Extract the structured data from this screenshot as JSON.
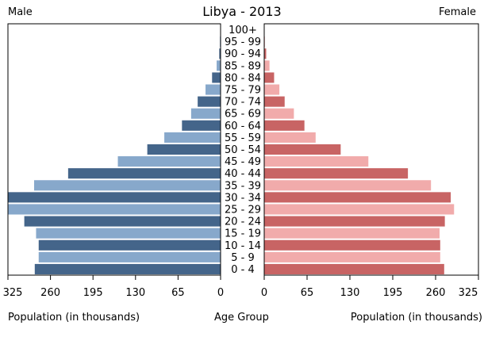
{
  "chart_data": {
    "type": "bar",
    "title": "Libya - 2013",
    "left_label": "Male",
    "right_label": "Female",
    "center_axis_label": "Age Group",
    "xlabel_left": "Population (in thousands)",
    "xlabel_right": "Population (in thousands)",
    "xlim": [
      0,
      325
    ],
    "xticks": [
      325,
      260,
      195,
      130,
      65,
      0
    ],
    "xticks_right": [
      0,
      65,
      130,
      195,
      260,
      325
    ],
    "categories": [
      "0 - 4",
      "5 - 9",
      "10 - 14",
      "15 - 19",
      "20 - 24",
      "25 - 29",
      "30 - 34",
      "35 - 39",
      "40 - 44",
      "45 - 49",
      "50 - 54",
      "55 - 59",
      "60 - 64",
      "65 - 69",
      "70 - 74",
      "75 - 79",
      "80 - 84",
      "85 - 89",
      "90 - 94",
      "95 - 99",
      "100+"
    ],
    "series": [
      {
        "name": "Male",
        "values": [
          284,
          278,
          278,
          282,
          300,
          325,
          325,
          285,
          233,
          157,
          112,
          86,
          59,
          45,
          35,
          23,
          13,
          6,
          2,
          1,
          0.5
        ]
      },
      {
        "name": "Female",
        "values": [
          273,
          267,
          267,
          266,
          274,
          288,
          283,
          253,
          218,
          158,
          116,
          78,
          61,
          45,
          31,
          23,
          15,
          8,
          3,
          1,
          0.5
        ]
      }
    ],
    "colors": {
      "male_dark": "#44658a",
      "male_light": "#87a8cb",
      "female_dark": "#c86464",
      "female_light": "#f1abab",
      "axis": "#000000"
    }
  }
}
